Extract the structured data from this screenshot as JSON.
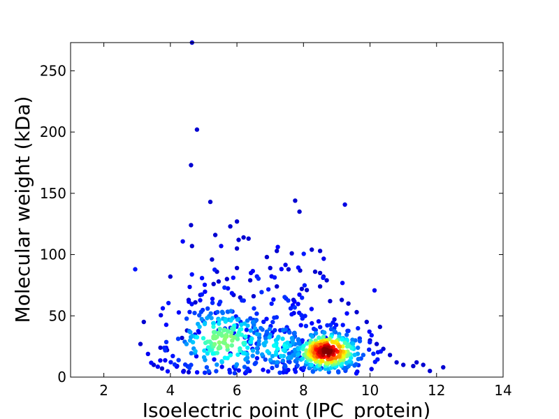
{
  "chart_data": {
    "type": "scatter",
    "title": "",
    "xlabel": "Isoelectric point (IPC_protein)",
    "ylabel": "Molecular weight (kDa)",
    "xlim": [
      1,
      14
    ],
    "ylim": [
      0,
      273
    ],
    "x_ticks": [
      2,
      4,
      6,
      8,
      10,
      12,
      14
    ],
    "y_ticks": [
      0,
      50,
      100,
      150,
      200,
      250
    ],
    "grid": false,
    "legend": "none",
    "color_encoding": "point density (jet colormap)",
    "colors": {
      "low_density": "#0000c8",
      "mid_density": "#3cff9c",
      "high_density": "#8b0000"
    },
    "outliers": [
      {
        "x": 4.65,
        "y": 273
      },
      {
        "x": 4.8,
        "y": 202
      },
      {
        "x": 4.62,
        "y": 173
      },
      {
        "x": 5.2,
        "y": 143
      },
      {
        "x": 7.75,
        "y": 144
      },
      {
        "x": 7.88,
        "y": 135
      },
      {
        "x": 6.0,
        "y": 127
      },
      {
        "x": 4.62,
        "y": 124
      },
      {
        "x": 5.8,
        "y": 123
      },
      {
        "x": 5.35,
        "y": 116
      },
      {
        "x": 6.2,
        "y": 114
      },
      {
        "x": 6.35,
        "y": 113
      },
      {
        "x": 6.05,
        "y": 112
      },
      {
        "x": 4.65,
        "y": 107
      },
      {
        "x": 6.0,
        "y": 105
      },
      {
        "x": 8.25,
        "y": 104
      },
      {
        "x": 8.5,
        "y": 103
      },
      {
        "x": 7.2,
        "y": 103
      },
      {
        "x": 7.65,
        "y": 101
      },
      {
        "x": 6.9,
        "y": 98
      },
      {
        "x": 5.25,
        "y": 96
      },
      {
        "x": 7.0,
        "y": 89
      },
      {
        "x": 6.0,
        "y": 89
      },
      {
        "x": 7.55,
        "y": 88
      },
      {
        "x": 7.9,
        "y": 87
      },
      {
        "x": 8.35,
        "y": 86
      },
      {
        "x": 8.5,
        "y": 85
      },
      {
        "x": 5.4,
        "y": 86
      },
      {
        "x": 4.0,
        "y": 82
      },
      {
        "x": 8.6,
        "y": 82
      },
      {
        "x": 8.7,
        "y": 79
      },
      {
        "x": 5.7,
        "y": 80
      },
      {
        "x": 6.4,
        "y": 79
      },
      {
        "x": 5.45,
        "y": 78
      },
      {
        "x": 5.3,
        "y": 76
      },
      {
        "x": 7.2,
        "y": 74
      },
      {
        "x": 7.95,
        "y": 72
      },
      {
        "x": 8.1,
        "y": 71
      },
      {
        "x": 8.5,
        "y": 74
      },
      {
        "x": 4.9,
        "y": 67
      },
      {
        "x": 5.9,
        "y": 67
      },
      {
        "x": 6.1,
        "y": 65
      },
      {
        "x": 6.5,
        "y": 66
      },
      {
        "x": 7.7,
        "y": 63
      },
      {
        "x": 9.15,
        "y": 63
      },
      {
        "x": 4.55,
        "y": 63
      },
      {
        "x": 9.35,
        "y": 60
      },
      {
        "x": 4.75,
        "y": 61
      },
      {
        "x": 8.8,
        "y": 62
      },
      {
        "x": 9.6,
        "y": 53
      },
      {
        "x": 9.9,
        "y": 45
      },
      {
        "x": 10.3,
        "y": 41
      },
      {
        "x": 3.2,
        "y": 45
      },
      {
        "x": 3.1,
        "y": 27
      },
      {
        "x": 3.7,
        "y": 24
      },
      {
        "x": 3.9,
        "y": 22
      },
      {
        "x": 4.5,
        "y": 38
      },
      {
        "x": 4.35,
        "y": 32
      },
      {
        "x": 10.0,
        "y": 30
      },
      {
        "x": 10.2,
        "y": 27
      },
      {
        "x": 10.4,
        "y": 23
      },
      {
        "x": 10.6,
        "y": 18
      },
      {
        "x": 10.8,
        "y": 12
      },
      {
        "x": 11.0,
        "y": 10
      },
      {
        "x": 11.3,
        "y": 9
      },
      {
        "x": 11.4,
        "y": 12
      },
      {
        "x": 11.6,
        "y": 10
      },
      {
        "x": 11.8,
        "y": 5
      },
      {
        "x": 12.2,
        "y": 8
      },
      {
        "x": 3.5,
        "y": 10
      },
      {
        "x": 3.75,
        "y": 7
      },
      {
        "x": 4.4,
        "y": 5
      },
      {
        "x": 4.55,
        "y": 4
      },
      {
        "x": 4.2,
        "y": 9
      }
    ],
    "clusters": [
      {
        "center": [
          8.7,
          21
        ],
        "spread": [
          0.55,
          9
        ],
        "count": 320,
        "peak_density": 1.0
      },
      {
        "center": [
          5.6,
          30
        ],
        "spread": [
          0.85,
          16
        ],
        "count": 230,
        "peak_density": 0.45
      },
      {
        "center": [
          7.2,
          25
        ],
        "spread": [
          0.6,
          12
        ],
        "count": 90,
        "peak_density": 0.3
      },
      {
        "center": [
          6.6,
          55
        ],
        "spread": [
          1.6,
          25
        ],
        "count": 110,
        "peak_density": 0.05
      }
    ]
  }
}
